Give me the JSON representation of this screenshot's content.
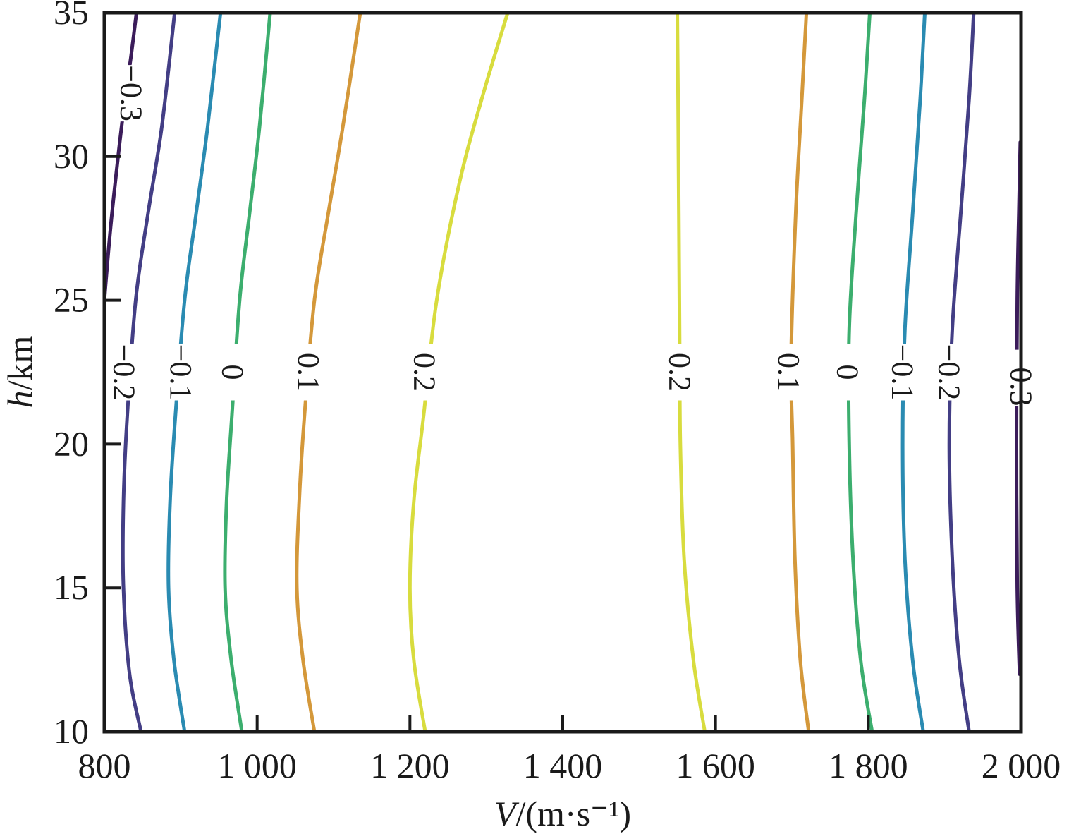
{
  "chart_data": {
    "type": "contour",
    "xlabel_var": "V",
    "xlabel_unit": "/(m·s⁻¹)",
    "ylabel_var": "h",
    "ylabel_unit": "/km",
    "xlim": [
      800,
      2000
    ],
    "ylim": [
      10,
      35
    ],
    "x_ticks": [
      800,
      1000,
      1200,
      1400,
      1600,
      1800,
      2000
    ],
    "x_tick_labels": [
      "800",
      "1 000",
      "1 200",
      "1 400",
      "1 600",
      "1 800",
      "2 000"
    ],
    "y_ticks": [
      10,
      15,
      20,
      25,
      30,
      35
    ],
    "y_tick_labels": [
      "10",
      "15",
      "20",
      "25",
      "30",
      "35"
    ],
    "grid": false,
    "levels": [
      {
        "name": "−0.3",
        "label": "−0.3",
        "color": "#3b1c5a",
        "curves": [
          {
            "label_at": [
              835,
              32.2
            ],
            "points": [
              [
                800,
                25
              ],
              [
                808,
                27.5
              ],
              [
                818,
                30
              ],
              [
                827,
                32
              ],
              [
                835,
                33.5
              ],
              [
                842,
                35
              ]
            ]
          },
          {
            "label_at": [
              2000,
              22.3
            ],
            "points": [
              [
                1998,
                12
              ],
              [
                1995,
                15
              ],
              [
                1994,
                20
              ],
              [
                1995,
                25
              ],
              [
                1997,
                28
              ],
              [
                1999,
                30.5
              ]
            ]
          }
        ]
      },
      {
        "name": "−0.2",
        "label": "−0.2",
        "color": "#433e85",
        "curves": [
          {
            "label_at": [
              826,
              22.5
            ],
            "points": [
              [
                848,
                10
              ],
              [
                833,
                12
              ],
              [
                825,
                15
              ],
              [
                825,
                18
              ],
              [
                830,
                21
              ],
              [
                841,
                25
              ],
              [
                857,
                28
              ],
              [
                875,
                31
              ],
              [
                892,
                35
              ]
            ]
          },
          {
            "label_at": [
              1906,
              22.5
            ],
            "points": [
              [
                1932,
                10
              ],
              [
                1919,
                12.5
              ],
              [
                1910,
                16
              ],
              [
                1906,
                20
              ],
              [
                1910,
                24
              ],
              [
                1921,
                28
              ],
              [
                1932,
                32
              ],
              [
                1938,
                35
              ]
            ]
          }
        ]
      },
      {
        "name": "−0.1",
        "label": "−0.1",
        "color": "#2a8bb2",
        "curves": [
          {
            "label_at": [
              900,
              22.5
            ],
            "points": [
              [
                905,
                10
              ],
              [
                891,
                12.5
              ],
              [
                884,
                15
              ],
              [
                886,
                18
              ],
              [
                893,
                21
              ],
              [
                905,
                25
              ],
              [
                920,
                28
              ],
              [
                935,
                31
              ],
              [
                952,
                35
              ]
            ]
          },
          {
            "label_at": [
              1845,
              22.5
            ],
            "points": [
              [
                1872,
                10
              ],
              [
                1858,
                12.5
              ],
              [
                1848,
                16
              ],
              [
                1845,
                20
              ],
              [
                1848,
                24
              ],
              [
                1858,
                28
              ],
              [
                1868,
                32
              ],
              [
                1874,
                35
              ]
            ]
          }
        ]
      },
      {
        "name": "0",
        "label": "0",
        "color": "#3cae6e",
        "curves": [
          {
            "label_at": [
              968,
              22.5
            ],
            "points": [
              [
                980,
                10
              ],
              [
                966,
                12.5
              ],
              [
                958,
                15
              ],
              [
                960,
                18
              ],
              [
                967,
                21
              ],
              [
                977,
                25
              ],
              [
                990,
                28
              ],
              [
                1003,
                31
              ],
              [
                1017,
                35
              ]
            ]
          },
          {
            "label_at": [
              1773,
              22.5
            ],
            "points": [
              [
                1805,
                10
              ],
              [
                1790,
                12.5
              ],
              [
                1780,
                16
              ],
              [
                1775,
                20
              ],
              [
                1775,
                24
              ],
              [
                1784,
                28
              ],
              [
                1795,
                32
              ],
              [
                1802,
                35
              ]
            ]
          }
        ]
      },
      {
        "name": "0.1",
        "label": "0.1",
        "color": "#d4983a",
        "curves": [
          {
            "label_at": [
              1067,
              22.5
            ],
            "points": [
              [
                1075,
                10
              ],
              [
                1060,
                12.5
              ],
              [
                1052,
                15
              ],
              [
                1055,
                18
              ],
              [
                1062,
                21
              ],
              [
                1075,
                25
              ],
              [
                1093,
                28
              ],
              [
                1112,
                31
              ],
              [
                1135,
                35
              ]
            ]
          },
          {
            "label_at": [
              1696,
              22.5
            ],
            "points": [
              [
                1722,
                10
              ],
              [
                1711,
                12.5
              ],
              [
                1704,
                16
              ],
              [
                1701,
                20
              ],
              [
                1699,
                23
              ],
              [
                1705,
                28
              ],
              [
                1713,
                32
              ],
              [
                1719,
                35
              ]
            ]
          }
        ]
      },
      {
        "name": "0.2",
        "label": "0.2",
        "color": "#d8dc3e",
        "curves": [
          {
            "label_at": [
              1219,
              22.5
            ],
            "points": [
              [
                1220,
                10
              ],
              [
                1205,
                12.5
              ],
              [
                1200,
                15
              ],
              [
                1205,
                18
              ],
              [
                1218,
                21
              ],
              [
                1235,
                25
              ],
              [
                1264,
                29
              ],
              [
                1294,
                32
              ],
              [
                1328,
                35
              ]
            ]
          },
          {
            "label_at": [
              1553,
              22.5
            ],
            "points": [
              [
                1586,
                10
              ],
              [
                1571,
                12.5
              ],
              [
                1559,
                16
              ],
              [
                1554,
                20
              ],
              [
                1553,
                24
              ],
              [
                1552,
                28
              ],
              [
                1551,
                32
              ],
              [
                1550,
                35
              ]
            ]
          }
        ]
      }
    ]
  }
}
